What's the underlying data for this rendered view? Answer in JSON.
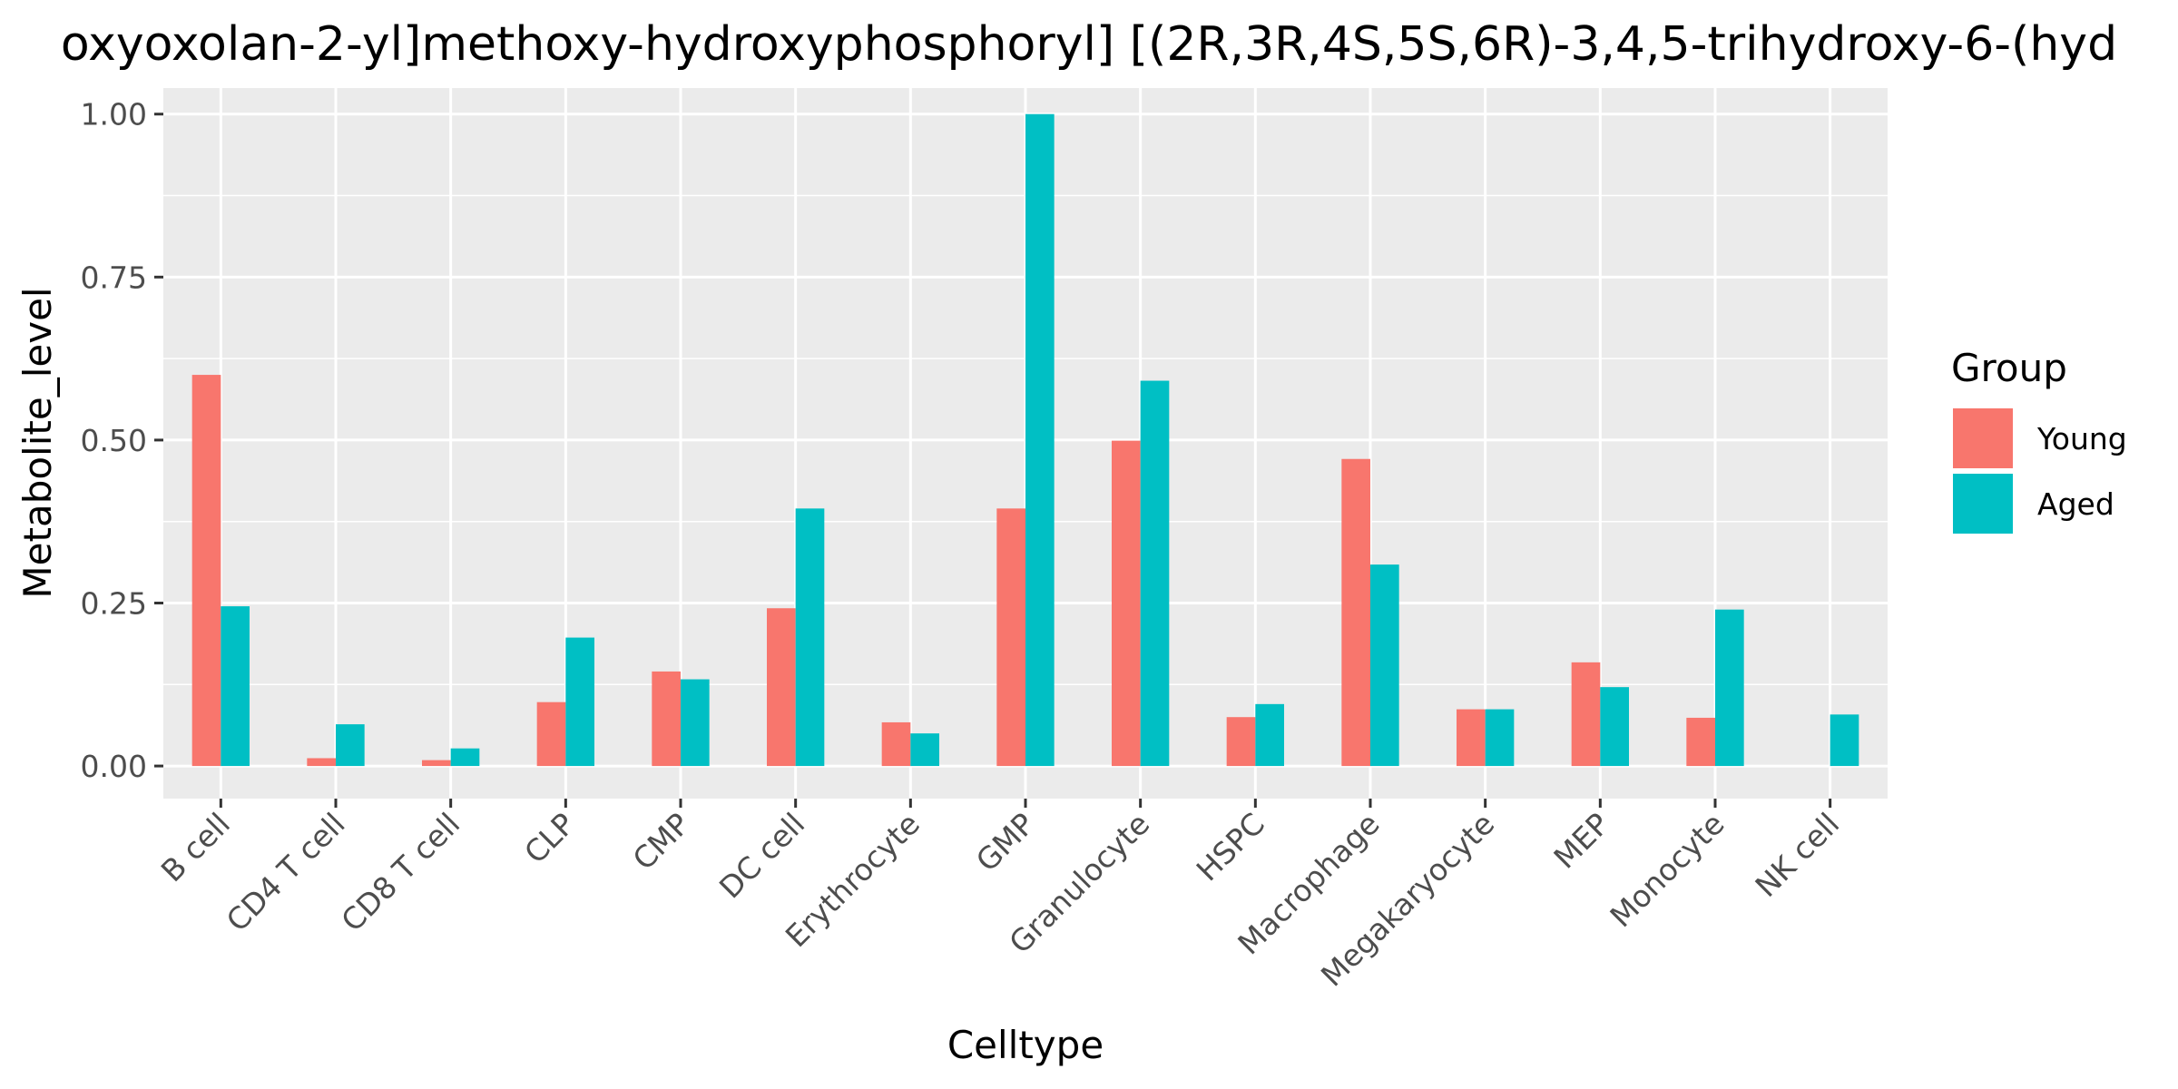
{
  "chart_data": {
    "type": "bar",
    "title": "oxyoxolan-2-yl]methoxy-hydroxyphosphoryl] [(2R,3R,4S,5S,6R)-3,4,5-trihydroxy-6-(hyd",
    "xlabel": "Celltype",
    "ylabel": "Metabolite_level",
    "ylim": [
      -0.05,
      1.04
    ],
    "yticks": [
      0.0,
      0.25,
      0.5,
      0.75,
      1.0
    ],
    "ytick_labels": [
      "0.00",
      "0.25",
      "0.50",
      "0.75",
      "1.00"
    ],
    "grid": true,
    "legend_position": "right",
    "legend_title": "Group",
    "categories": [
      "B cell",
      "CD4 T cell",
      "CD8 T cell",
      "CLP",
      "CMP",
      "DC cell",
      "Erythrocyte",
      "GMP",
      "Granulocyte",
      "HSPC",
      "Macrophage",
      "Megakaryocyte",
      "MEP",
      "Monocyte",
      "NK cell"
    ],
    "series": [
      {
        "name": "Young",
        "color": "#F8766D",
        "values": [
          0.6,
          0.012,
          0.009,
          0.098,
          0.145,
          0.242,
          0.067,
          0.395,
          0.499,
          0.075,
          0.471,
          0.087,
          0.159,
          0.074,
          null
        ]
      },
      {
        "name": "Aged",
        "color": "#00BFC4",
        "values": [
          0.245,
          0.064,
          0.027,
          0.197,
          0.133,
          0.395,
          0.05,
          1.0,
          0.591,
          0.095,
          0.309,
          0.087,
          0.121,
          0.24,
          0.079
        ]
      }
    ]
  }
}
